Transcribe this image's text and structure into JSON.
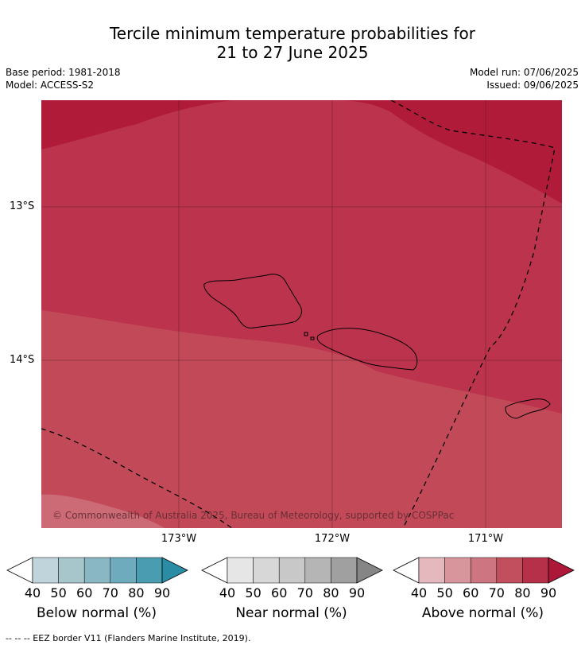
{
  "title_line1": "Tercile minimum temperature probabilities for",
  "title_line2": "21 to 27 June 2025",
  "meta": {
    "base_period": "Base period: 1981-2018",
    "model": "Model: ACCESS-S2",
    "model_run": "Model run: 07/06/2025",
    "issued": "Issued: 09/06/2025"
  },
  "map": {
    "lat_labels": [
      "13°S",
      "14°S"
    ],
    "lon_labels": [
      "173°W",
      "172°W",
      "171°W"
    ],
    "copyright": "© Commonwealth of Australia 2025, Bureau of Meteorology, supported by COSPPac",
    "probability_colors": {
      "above_90": "#b01b3a",
      "above_80": "#bb334c",
      "above_70": "#c24a58",
      "above_60": "#cc6a76"
    }
  },
  "colorbars": [
    {
      "name": "below",
      "label": "Below normal (%)",
      "ticks": [
        "40",
        "50",
        "60",
        "70",
        "80",
        "90"
      ],
      "colors": [
        "#ffffff",
        "#c0d5db",
        "#a6c6cc",
        "#89b7c3",
        "#6eacbd",
        "#4a9db0",
        "#2a8da5"
      ]
    },
    {
      "name": "near",
      "label": "Near normal (%)",
      "ticks": [
        "40",
        "50",
        "60",
        "70",
        "80",
        "90"
      ],
      "colors": [
        "#ffffff",
        "#e6e6e6",
        "#d7d7d7",
        "#c8c8c8",
        "#b5b5b5",
        "#a0a0a0",
        "#858585"
      ]
    },
    {
      "name": "above",
      "label": "Above normal (%)",
      "ticks": [
        "40",
        "50",
        "60",
        "70",
        "80",
        "90"
      ],
      "colors": [
        "#ffffff",
        "#e4b8bc",
        "#d8969c",
        "#cd7580",
        "#c24f5e",
        "#b7304a",
        "#ae1838"
      ]
    }
  ],
  "eez_note": "--  --  -- EEZ border V11 (Flanders Marine Institute, 2019)."
}
